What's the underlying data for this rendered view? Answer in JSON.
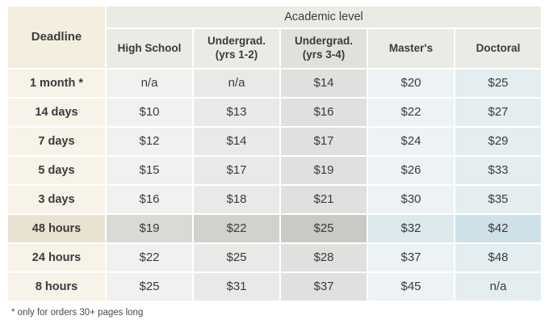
{
  "chart_data": {
    "type": "table",
    "title": "Academic level",
    "corner_label": "Deadline",
    "columns": [
      "High School",
      "Undergrad. (yrs 1-2)",
      "Undergrad. (yrs 3-4)",
      "Master's",
      "Doctoral"
    ],
    "rows": [
      {
        "deadline": "1 month *",
        "values": [
          "n/a",
          "n/a",
          "$14",
          "$20",
          "$25"
        ]
      },
      {
        "deadline": "14 days",
        "values": [
          "$10",
          "$13",
          "$16",
          "$22",
          "$27"
        ]
      },
      {
        "deadline": "7 days",
        "values": [
          "$12",
          "$14",
          "$17",
          "$24",
          "$29"
        ]
      },
      {
        "deadline": "5 days",
        "values": [
          "$15",
          "$17",
          "$19",
          "$26",
          "$33"
        ]
      },
      {
        "deadline": "3 days",
        "values": [
          "$16",
          "$18",
          "$21",
          "$30",
          "$35"
        ]
      },
      {
        "deadline": "48 hours",
        "values": [
          "$19",
          "$22",
          "$25",
          "$32",
          "$42"
        ]
      },
      {
        "deadline": "24 hours",
        "values": [
          "$22",
          "$25",
          "$28",
          "$37",
          "$48"
        ]
      },
      {
        "deadline": "8 hours",
        "values": [
          "$25",
          "$31",
          "$37",
          "$45",
          "n/a"
        ]
      }
    ],
    "highlighted_row": "48 hours",
    "footnote": "* only for orders 30+ pages long"
  },
  "colors": {
    "deadline_column_bg": "#f7f3e9",
    "header_band_bg": "#e9ece5",
    "highlight_row_bg": "#c9cac6",
    "masters_column_bg": "#edf3f5",
    "doctoral_column_bg": "#e4eef1",
    "text": "#3b3b3b"
  }
}
